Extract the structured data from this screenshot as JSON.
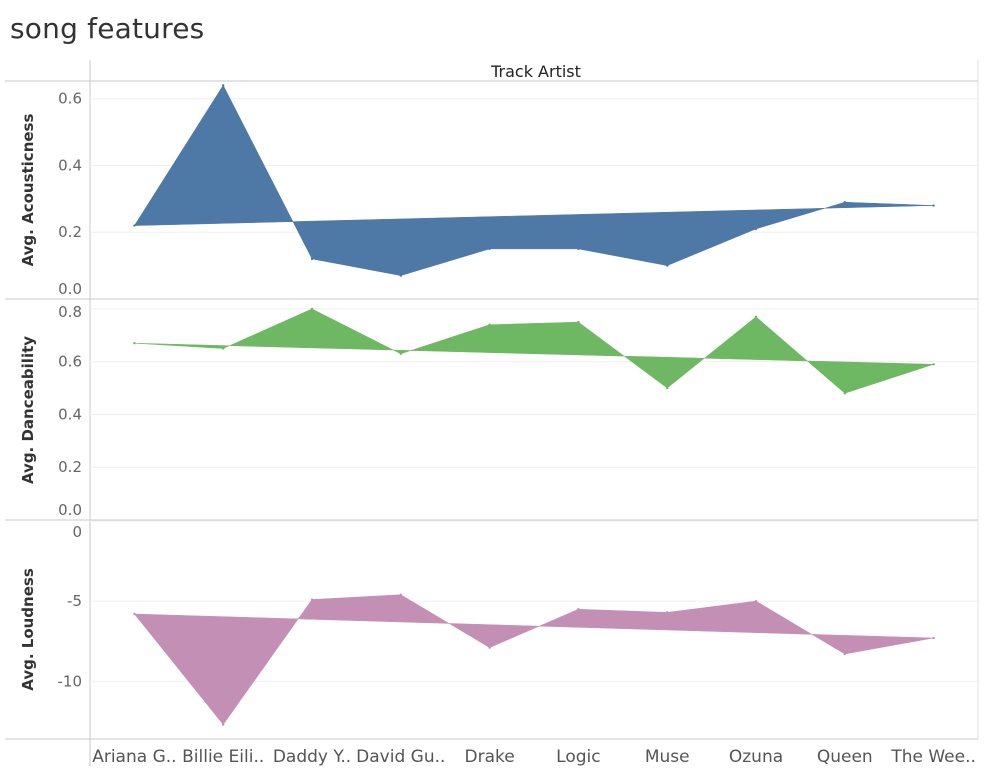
{
  "title": "song features",
  "chart_data": {
    "type": "area",
    "column_header": "Track Artist",
    "categories": [
      "Ariana G..",
      "Billie Eili..",
      "Daddy Y..",
      "David Gu..",
      "Drake",
      "Logic",
      "Muse",
      "Ozuna",
      "Queen",
      "The Wee.."
    ],
    "panels": [
      {
        "ylabel": "Avg. Acousticness",
        "color": "#4e79a7",
        "ylim": [
          0,
          0.65
        ],
        "ticks": [
          0.0,
          0.2,
          0.4,
          0.6
        ],
        "tick_labels": [
          "0.0",
          "0.2",
          "0.4",
          "0.6"
        ],
        "values": [
          0.22,
          0.64,
          0.12,
          0.07,
          0.15,
          0.15,
          0.1,
          0.21,
          0.29,
          0.28
        ]
      },
      {
        "ylabel": "Avg. Danceability",
        "color": "#6fb863",
        "ylim": [
          0,
          0.83
        ],
        "ticks": [
          0.0,
          0.2,
          0.4,
          0.6,
          0.8
        ],
        "tick_labels": [
          "0.0",
          "0.2",
          "0.4",
          "0.6",
          "0.8"
        ],
        "values": [
          0.67,
          0.65,
          0.8,
          0.63,
          0.74,
          0.75,
          0.5,
          0.77,
          0.48,
          0.59
        ]
      },
      {
        "ylabel": "Avg. Loudness",
        "color": "#c48fb5",
        "ylim": [
          -13.6,
          0
        ],
        "ticks": [
          0,
          -5,
          -10
        ],
        "tick_labels": [
          "0",
          "-5",
          "-10"
        ],
        "values": [
          -5.8,
          -12.7,
          -4.9,
          -4.6,
          -7.9,
          -5.5,
          -5.7,
          -5.0,
          -8.3,
          -7.3
        ]
      }
    ]
  }
}
